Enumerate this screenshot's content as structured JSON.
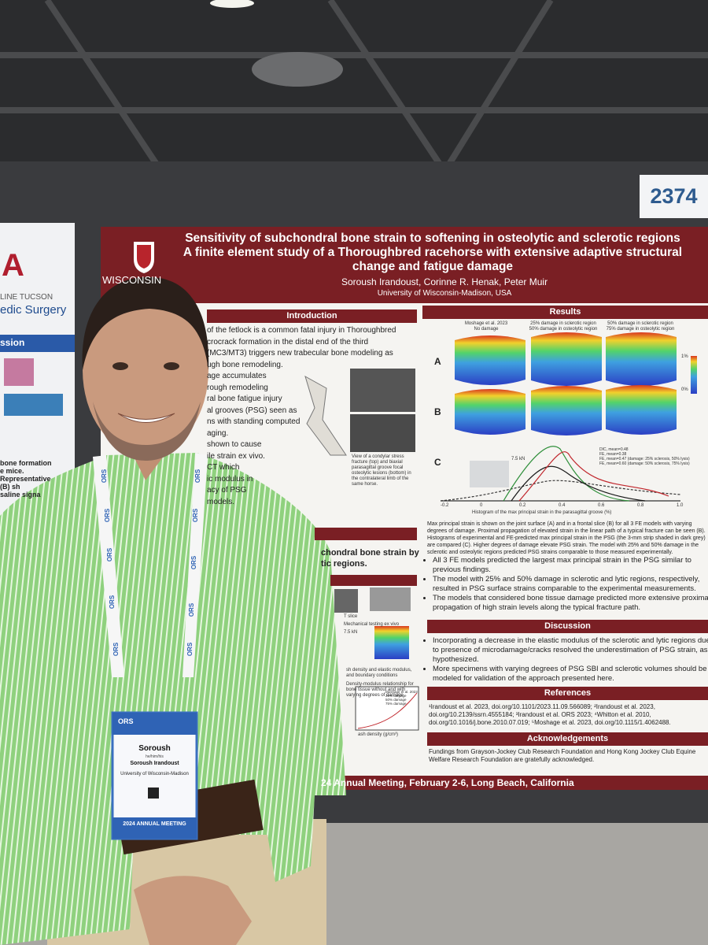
{
  "poster_number": "2374",
  "left_poster": {
    "logo": "A",
    "line1": "LINE TUCSON",
    "line2": "edic Surgery",
    "heading": "ssion",
    "caption": [
      "bone formation",
      "e mice. Representative",
      "(B) sh",
      "saline signa"
    ]
  },
  "poster": {
    "title": [
      "Sensitivity of subchondral bone strain to softening in osteolytic and sclerotic regions",
      "A finite element study of a Thoroughbred racehorse with extensive adaptive structural",
      "change and fatigue damage"
    ],
    "authors": "Soroush Irandoust, Corinne R. Henak, Peter Muir",
    "affiliation": "University of Wisconsin-Madison, USA",
    "institution": "WISCONSIN",
    "introduction": {
      "heading": "Introduction",
      "lines": [
        "of the fetlock is a common fatal injury in Thoroughbred",
        "crocrack formation in the distal end of the third",
        "(MC3/MT3) triggers new trabecular bone modeling as",
        "ugh bone remodeling.",
        "age accumulates",
        "rough remodeling",
        "ral bone fatigue injury",
        "al grooves (PSG) seen as",
        "ns with standing computed",
        "aging.",
        "shown to cause",
        "ile strain ex vivo.",
        "CT which",
        "ic modulus in",
        "acy of PSG",
        "models."
      ],
      "figure_caption": "View of a condylar stress fracture (top) and biaxial parasagittal groove focal osteolytic lesions (bottom) in the contralateral limb of the same horse."
    },
    "methods": {
      "heading": [
        "chondral bone strain by",
        "tic regions."
      ],
      "labels": [
        "T slice",
        "Mechanical testing ex vivo",
        "7.5 kN"
      ],
      "captions": [
        "sh density and elastic modulus, and boundary conditions",
        "Density-modulus relationship for bone tissue without and with varying degrees of damage"
      ],
      "plot_axis_x": "ash density (g/cm³)",
      "plot_axis_y": "Elastic modulus (GPa)",
      "plot_legend": [
        "Moshage et al. 2023",
        "25% damage",
        "50% damage",
        "75% damage"
      ]
    },
    "results": {
      "heading": "Results",
      "column_labels": [
        [
          "Moshage et al. 2023",
          "No damage"
        ],
        [
          "25% damage in sclerotic region",
          "50% damage in osteolytic region"
        ],
        [
          "50% damage in sclerotic region",
          "75% damage in osteolytic region"
        ]
      ],
      "panels": [
        "A",
        "B",
        "C"
      ],
      "colorbar": [
        "1%",
        "0%"
      ],
      "load": "7.5 kN",
      "legend": [
        "DIC, mean=0.48",
        "FE, mean=0.38",
        "FE, mean=0.47 (damage: 25% sclerosis, 50% lysis)",
        "FE, mean=0.60 (damage: 50% sclerosis, 75% lysis)"
      ],
      "axis_ticks": [
        "-0.2",
        "0",
        "0.2",
        "0.4",
        "0.6",
        "0.8",
        "1.0"
      ],
      "axis_label": "Histogram of the max principal strain in the parasagittal groove (%)",
      "text": "Max principal strain is shown on the joint surface (A) and in a frontal slice (B) for all 3 FE models with varying degrees of damage. Proximal propagation of elevated strain in the linear path of a typical fracture can be seen (B). Histograms of experimental and FE-predicted max principal strain in the PSG (the 3-mm strip shaded in dark grey) are compared (C). Higher degrees of damage elevate PSG strain. The model with 25% and 50% damage in the sclerotic and osteolytic regions predicted PSG strains comparable to those measured experimentally.",
      "bullets": [
        "All 3 FE models predicted the largest max principal strain in the PSG similar to previous findings.",
        "The model with 25% and 50% damage in sclerotic and lytic regions, respectively, resulted in PSG surface strains comparable to the experimental measurements.",
        "The models that considered bone tissue damage predicted more extensive proximal propagation of high strain levels along the typical fracture path."
      ]
    },
    "discussion": {
      "heading": "Discussion",
      "bullets": [
        "Incorporating a decrease in the elastic modulus of the sclerotic and lytic regions due to presence of microdamage/cracks resolved the underestimation of PSG strain, as hypothesized.",
        "More specimens with varying degrees of PSG SBI and sclerotic volumes should be modeled for validation of the approach presented here."
      ]
    },
    "references": {
      "heading": "References",
      "text": "¹Irandoust et al. 2023, doi.org/10.1101/2023.11.09.566089; ²Irandoust et al. 2023, doi.org/10.2139/ssrn.4555184; ³Irandoust et al. ORS 2023; ⁴Whitton et al. 2010, doi.org/10.1016/j.bone.2010.07.019; ⁵Moshage et al. 2023, doi.org/10.1115/1.4062488."
    },
    "acknowledgements": {
      "heading": "Acknowledgements",
      "text": "Fundings from Grayson-Jockey Club Research Foundation and Hong Kong Jockey Club Equine Welfare Research Foundation are gratefully acknowledged."
    },
    "footer": "24 Annual Meeting, February 2-6, Long Beach, California"
  },
  "lanyard": "ORS",
  "badge": {
    "first_name": "Soroush",
    "pronouns": "he/him/his",
    "name": "Soroush Irandoust",
    "institution": "University of Wisconsin-Madison",
    "logo": "ORS",
    "event": "2024 ANNUAL MEETING"
  }
}
